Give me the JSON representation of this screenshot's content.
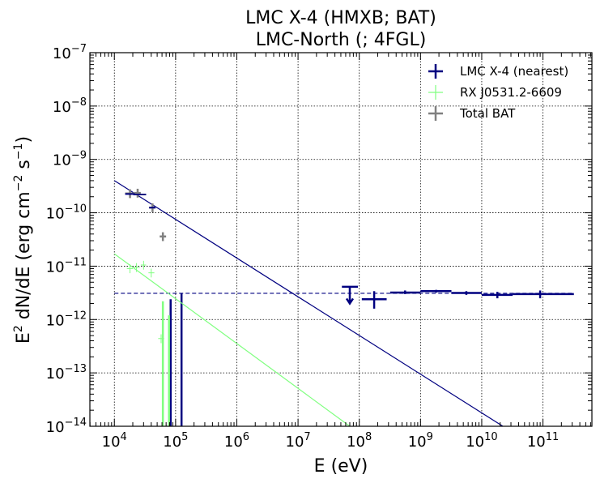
{
  "chart_data": {
    "type": "scatter",
    "title_line1": "LMC X-4 (HMXB; BAT)",
    "title_line2": "LMC-North (; 4FGL)",
    "xlabel": "E (eV)",
    "ylabel_main": "E",
    "ylabel_sup": "2",
    "ylabel_rest": " dN/dE (erg cm",
    "ylabel_sup2": "−2",
    "ylabel_s": " s",
    "ylabel_sup3": "−1",
    "ylabel_close": ")",
    "x_scale": "log",
    "y_scale": "log",
    "xlim": [
      3981,
      630000000000.0
    ],
    "ylim": [
      1e-14,
      1e-07
    ],
    "grid": true,
    "legend_position": "top-right",
    "x_tick_exponents": [
      4,
      5,
      6,
      7,
      8,
      9,
      10,
      11
    ],
    "y_tick_exponents": [
      -14,
      -13,
      -12,
      -11,
      -10,
      -9,
      -8,
      -7
    ],
    "tick_base": "10",
    "colors": {
      "nearest": "#000080",
      "rxj": "#80ff80",
      "total": "#808080"
    },
    "series": [
      {
        "name": "LMC X-4 (nearest)",
        "color": "#000080",
        "powerlaw": {
          "x": [
            10000.0,
            150000000000.0
          ],
          "y": [
            4e-10,
            2.5e-15
          ]
        },
        "flat_line": {
          "x": [
            10000.0,
            300000000000.0
          ],
          "y": 3.1e-12
        },
        "points": [
          {
            "x": 175000000.0,
            "xlo": 110000000.0,
            "xhi": 280000000.0,
            "y": 2.4e-12,
            "ylo": 1.6e-12,
            "yhi": 3.4e-12
          },
          {
            "x": 560000000.0,
            "xlo": 320000000.0,
            "xhi": 1000000000.0,
            "y": 3.2e-12,
            "ylo": 3e-12,
            "yhi": 3.5e-12
          },
          {
            "x": 1800000000.0,
            "xlo": 1000000000.0,
            "xhi": 3200000000.0,
            "y": 3.4e-12,
            "ylo": 3.2e-12,
            "yhi": 3.6e-12
          },
          {
            "x": 5600000000.0,
            "xlo": 3200000000.0,
            "xhi": 10000000000.0,
            "y": 3.15e-12,
            "ylo": 2.9e-12,
            "yhi": 3.4e-12
          },
          {
            "x": 18000000000.0,
            "xlo": 10000000000.0,
            "xhi": 32000000000.0,
            "y": 2.9e-12,
            "ylo": 2.5e-12,
            "yhi": 3.3e-12
          },
          {
            "x": 90000000000.0,
            "xlo": 32000000000.0,
            "xhi": 320000000000.0,
            "y": 3e-12,
            "ylo": 2.5e-12,
            "yhi": 3.5e-12
          }
        ],
        "upper_limit": {
          "x": 70000000.0,
          "xlo": 52000000.0,
          "xhi": 95000000.0,
          "y": 4.1e-12,
          "yarrow": 2e-12
        },
        "spikes": [
          {
            "x": 83000.0,
            "ylo": 1e-14,
            "yhi": 2.4e-12
          },
          {
            "x": 125000.0,
            "ylo": 1e-14,
            "yhi": 3.1e-12
          }
        ]
      },
      {
        "name": "RX J0531.2-6609",
        "color": "#80ff80",
        "powerlaw": {
          "x": [
            10000.0,
            70000000.0
          ],
          "y": [
            1.7e-11,
            1e-14
          ]
        },
        "points": [
          {
            "x": 18000.0,
            "xlo": 16000.0,
            "xhi": 20000.0,
            "y": 9e-12
          },
          {
            "x": 23000.0,
            "xlo": 20000.0,
            "xhi": 26000.0,
            "y": 9.5e-12
          },
          {
            "x": 30000.0,
            "xlo": 27000.0,
            "xhi": 33000.0,
            "y": 1.05e-11
          },
          {
            "x": 40000.0,
            "xlo": 36000.0,
            "xhi": 45000.0,
            "y": 7.5e-12
          },
          {
            "x": 58000.0,
            "xlo": 52000.0,
            "xhi": 65000.0,
            "y": 4.4e-13
          }
        ],
        "spikes": [
          {
            "x": 62000.0,
            "ylo": 1e-14,
            "yhi": 2.2e-12
          },
          {
            "x": 78000.0,
            "ylo": 1e-14,
            "yhi": 1.2e-12
          }
        ]
      },
      {
        "name": "Total BAT",
        "color": "#808080",
        "points": [
          {
            "x": 18000.0,
            "xlo": 15000.0,
            "xhi": 21000.0,
            "y": 2.3e-10
          },
          {
            "x": 24000.0,
            "xlo": 21000.0,
            "xhi": 27000.0,
            "y": 2.35e-10
          },
          {
            "x": 42000.0,
            "xlo": 37000.0,
            "xhi": 47000.0,
            "y": 1.25e-10
          },
          {
            "x": 62000.0,
            "xlo": 55000.0,
            "xhi": 70000.0,
            "y": 3.6e-11
          }
        ]
      }
    ],
    "blue_step": {
      "x": [
        15000.0,
        21000.0,
        21000.0,
        33000.0
      ],
      "y": [
        2.25e-10,
        2.25e-10,
        2.2e-10,
        2.2e-10
      ]
    },
    "blue_step2": {
      "x": [
        37000.0,
        47000.0
      ],
      "y": [
        1.25e-10,
        1.25e-10
      ]
    }
  }
}
